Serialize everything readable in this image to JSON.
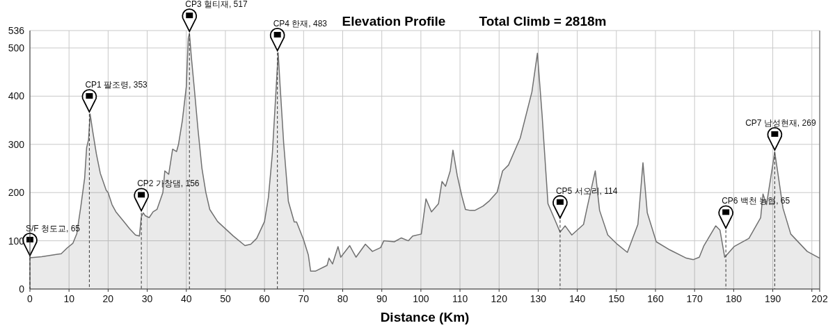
{
  "chart_data": {
    "type": "area",
    "title": "Elevation Profile",
    "subtitle": "Total Climb = 2818m",
    "xlabel": "Distance (Km)",
    "x": [
      0,
      3,
      7,
      8,
      9.5,
      11,
      12,
      13,
      14,
      14.5,
      15,
      15.4,
      16,
      17,
      18,
      19.5,
      20,
      21,
      22,
      24,
      25.5,
      27,
      28,
      28.5,
      29,
      29.5,
      30.5,
      31.5,
      32.5,
      34,
      34.5,
      35.5,
      36.5,
      37.5,
      38,
      39,
      40,
      40.5,
      40.8,
      41.3,
      42,
      43,
      44,
      45,
      46,
      48,
      52,
      55,
      56.5,
      58,
      60,
      61,
      62,
      63,
      63.5,
      64,
      64.9,
      66.1,
      67.6,
      68.2,
      70,
      71.2,
      71.8,
      73,
      76,
      76.5,
      77.4,
      78.8,
      79.5,
      81.8,
      83.4,
      85.8,
      87.6,
      89.7,
      90.5,
      93.2,
      95,
      96.8,
      97.9,
      100.1,
      101.3,
      102.7,
      104.5,
      105.4,
      106.3,
      107.5,
      108.2,
      109.3,
      110.5,
      111.4,
      112.6,
      113.8,
      115.9,
      117.4,
      119.5,
      120.9,
      122.4,
      125.4,
      128.4,
      129.8,
      131,
      132.5,
      134.3,
      135.6,
      136.9,
      138.6,
      141.6,
      142.5,
      144.6,
      145.7,
      147.8,
      150.2,
      152.8,
      155.5,
      156.8,
      157.9,
      160.2,
      163.7,
      167.9,
      169.7,
      171.2,
      172.4,
      175.4,
      176.5,
      177.7,
      180.1,
      183.9,
      186.9,
      187.5,
      188.4,
      190.5,
      191.4,
      192.6,
      194.6,
      198.8,
      202
    ],
    "values": [
      65,
      67,
      72,
      73,
      85,
      95,
      115,
      170,
      230,
      293,
      310,
      363,
      330,
      280,
      240,
      205,
      200,
      175,
      160,
      140,
      125,
      112,
      110,
      150,
      158,
      152,
      148,
      160,
      165,
      200,
      245,
      238,
      290,
      285,
      300,
      350,
      420,
      520,
      530,
      480,
      420,
      330,
      250,
      200,
      165,
      140,
      110,
      90,
      93,
      105,
      140,
      190,
      280,
      420,
      490,
      420,
      303,
      182,
      139,
      139,
      102,
      71,
      37,
      37,
      49,
      64,
      52,
      88,
      66,
      90,
      66,
      93,
      78,
      86,
      100,
      98,
      106,
      100,
      110,
      114,
      187,
      160,
      177,
      223,
      213,
      245,
      288,
      235,
      192,
      165,
      163,
      163,
      172,
      182,
      201,
      245,
      257,
      313,
      409,
      489,
      361,
      177,
      143,
      118,
      131,
      112,
      134,
      168,
      245,
      163,
      112,
      93,
      76,
      134,
      262,
      158,
      98,
      81,
      64,
      61,
      66,
      90,
      131,
      122,
      66,
      88,
      105,
      148,
      197,
      175,
      284,
      235,
      168,
      114,
      78,
      64
    ],
    "color": "#707070",
    "xlim": [
      0,
      202
    ],
    "xticks": [
      0,
      10,
      20,
      30,
      40,
      50,
      60,
      70,
      80,
      90,
      100,
      110,
      120,
      130,
      140,
      150,
      160,
      170,
      180,
      190,
      {
        "value": 200,
        "label": null
      },
      202
    ],
    "ylim": [
      0,
      536
    ],
    "yticks": [
      0,
      100,
      200,
      300,
      400,
      500,
      536
    ],
    "grid": true,
    "ref_lines": [
      {
        "axis": "x",
        "value": 0,
        "label": "S/F 청도교, 65",
        "line_style": "dashed",
        "color": "#333333"
      },
      {
        "axis": "x",
        "value": 15.2,
        "label": "CP1 팔조령, 353",
        "line_style": "dashed",
        "color": "#333333"
      },
      {
        "axis": "x",
        "value": 28.5,
        "label": "CP2 가창댐, 156",
        "line_style": "dashed",
        "color": "#333333"
      },
      {
        "axis": "x",
        "value": 40.8,
        "label": "CP3 헐티재, 517",
        "line_style": "dashed",
        "color": "#333333"
      },
      {
        "axis": "x",
        "value": 63.3,
        "label": "CP4 한재, 483",
        "line_style": "dashed",
        "color": "#333333"
      },
      {
        "axis": "x",
        "value": 135.6,
        "label": "CP5 서오리, 114",
        "line_style": "dashed",
        "color": "#333333"
      },
      {
        "axis": "x",
        "value": 178,
        "label": "CP6 백천 농협, 65",
        "line_style": "dashed",
        "color": "#333333"
      },
      {
        "axis": "x",
        "value": 190.5,
        "label": "CP7 남성현재, 269",
        "line_style": "dashed",
        "color": "#333333"
      }
    ]
  }
}
